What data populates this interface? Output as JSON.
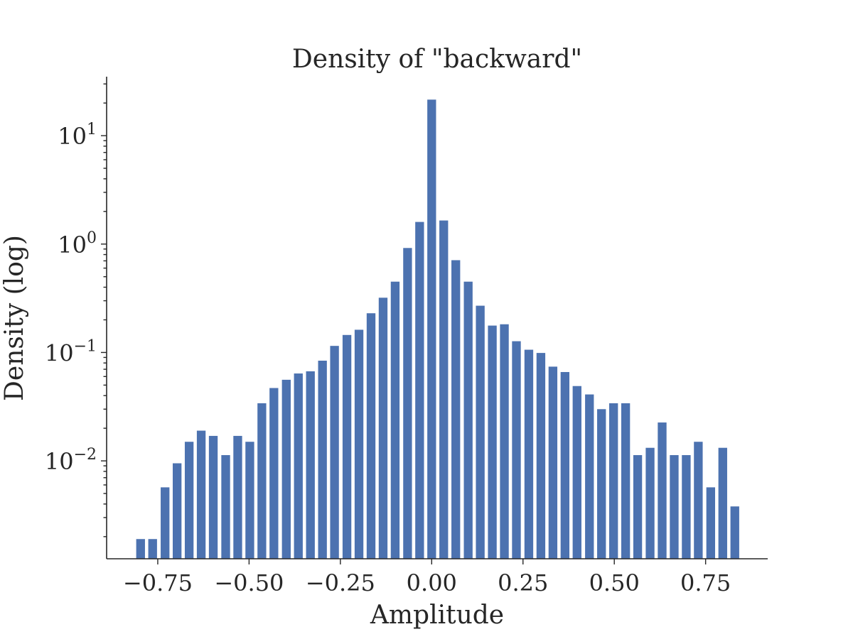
{
  "chart_data": {
    "type": "bar",
    "title": "Density of \"backward\"",
    "xlabel": "Amplitude",
    "ylabel": "Density (log)",
    "yscale": "log",
    "xlim": [
      -0.89,
      0.92
    ],
    "ylim": [
      0.00125,
      35
    ],
    "grid": false,
    "bar_color": "#4c72b0",
    "bin_width": 0.0332,
    "bar_width": 0.024,
    "x_ticks": [
      {
        "value": -0.75,
        "label": "−0.75"
      },
      {
        "value": -0.5,
        "label": "−0.50"
      },
      {
        "value": -0.25,
        "label": "−0.25"
      },
      {
        "value": 0.0,
        "label": "0.00"
      },
      {
        "value": 0.25,
        "label": "0.25"
      },
      {
        "value": 0.5,
        "label": "0.50"
      },
      {
        "value": 0.75,
        "label": "0.75"
      }
    ],
    "y_ticks": [
      {
        "value": 0.01,
        "base": "10",
        "exp": "−2"
      },
      {
        "value": 0.1,
        "base": "10",
        "exp": "−1"
      },
      {
        "value": 1,
        "base": "10",
        "exp": "0"
      },
      {
        "value": 10,
        "base": "10",
        "exp": "1"
      }
    ],
    "x": [
      -0.797,
      -0.764,
      -0.73,
      -0.697,
      -0.664,
      -0.631,
      -0.598,
      -0.564,
      -0.531,
      -0.498,
      -0.465,
      -0.432,
      -0.398,
      -0.365,
      -0.332,
      -0.299,
      -0.266,
      -0.232,
      -0.199,
      -0.166,
      -0.133,
      -0.1,
      -0.066,
      -0.033,
      0.0,
      0.033,
      0.066,
      0.1,
      0.133,
      0.166,
      0.199,
      0.232,
      0.266,
      0.299,
      0.332,
      0.365,
      0.398,
      0.432,
      0.465,
      0.498,
      0.531,
      0.564,
      0.598,
      0.631,
      0.664,
      0.697,
      0.73,
      0.764,
      0.797,
      0.83
    ],
    "values": [
      0.0019,
      0.0019,
      0.0057,
      0.0095,
      0.015,
      0.019,
      0.017,
      0.0113,
      0.017,
      0.015,
      0.034,
      0.047,
      0.056,
      0.064,
      0.067,
      0.084,
      0.115,
      0.145,
      0.162,
      0.23,
      0.32,
      0.45,
      0.92,
      1.6,
      21.5,
      1.65,
      0.71,
      0.45,
      0.27,
      0.177,
      0.182,
      0.127,
      0.106,
      0.099,
      0.074,
      0.066,
      0.049,
      0.041,
      0.03,
      0.034,
      0.034,
      0.0113,
      0.0132,
      0.0226,
      0.0113,
      0.0113,
      0.015,
      0.0057,
      0.0132,
      0.0038
    ]
  }
}
